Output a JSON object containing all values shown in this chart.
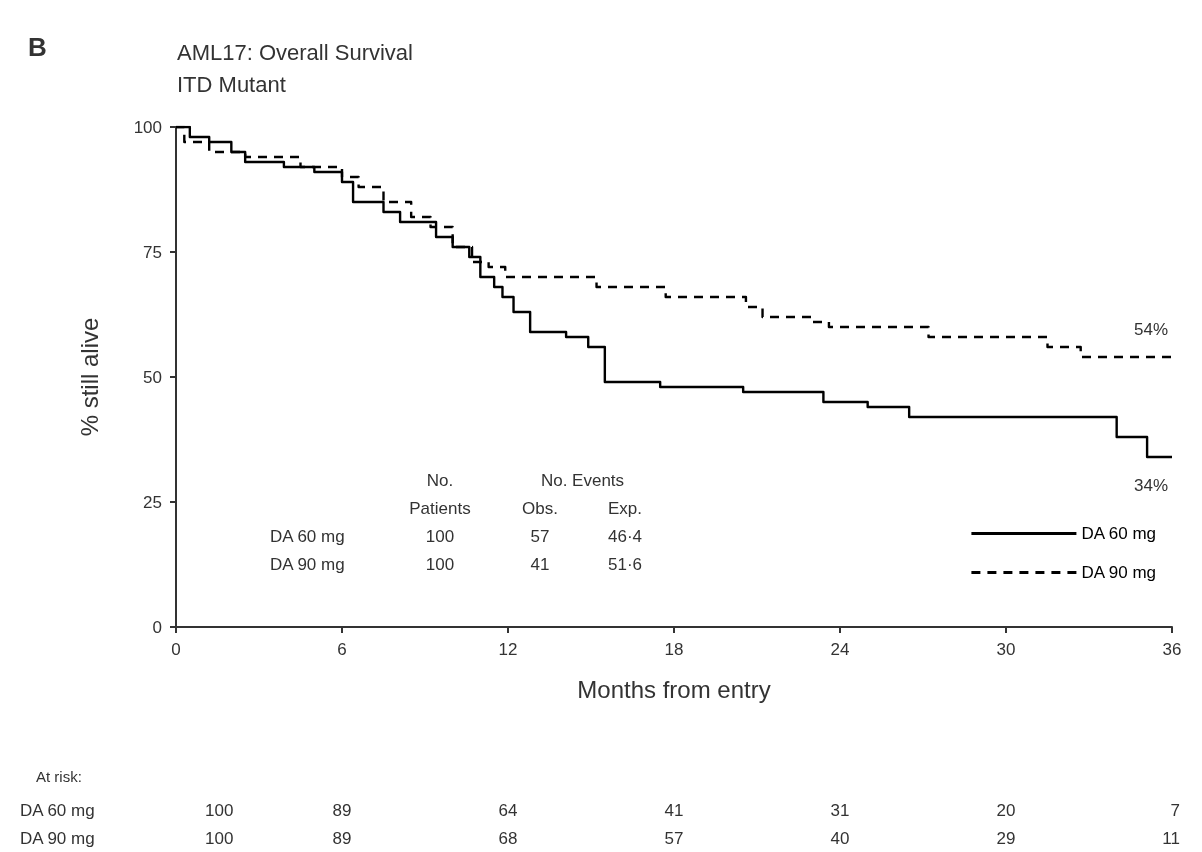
{
  "chart_data": {
    "type": "step",
    "title": "AML17: Overall Survival",
    "subtitle": "ITD Mutant",
    "xlabel": "Months from entry",
    "ylabel": "% still alive",
    "xlim": [
      0,
      36
    ],
    "xticks": [
      0,
      6,
      12,
      18,
      24,
      30,
      36
    ],
    "ylim": [
      0,
      100
    ],
    "yticks": [
      0,
      25,
      50,
      75,
      100
    ],
    "grid": false,
    "legend": "bottom right",
    "marker": "none",
    "series": [
      {
        "name": "DA 60 mg",
        "color": "#000000",
        "line_style": "solid",
        "x": [
          0,
          0.5,
          1.2,
          2,
          2.5,
          3.9,
          5,
          6,
          6.4,
          7.5,
          8.1,
          9.4,
          10,
          10.6,
          11,
          11.5,
          11.8,
          12.2,
          12.8,
          14.1,
          14.9,
          15.5,
          17.5,
          20.5,
          23.4,
          25,
          26.5,
          34,
          35.1,
          36
        ],
        "values": [
          100,
          98,
          97,
          95,
          93,
          92,
          91,
          89,
          85,
          83,
          81,
          78,
          76,
          74,
          70,
          68,
          66,
          63,
          59,
          58,
          56,
          49,
          48,
          47,
          45,
          44,
          42,
          38,
          34,
          34
        ]
      },
      {
        "name": "DA 90 mg",
        "color": "#000000",
        "line_style": "dashed",
        "x": [
          0,
          0.3,
          1.2,
          2.5,
          4.5,
          6,
          6.6,
          7.5,
          8.5,
          9.2,
          10,
          10.7,
          11.3,
          11.9,
          15.2,
          17.7,
          20.6,
          21.2,
          23,
          23.6,
          27.2,
          31.5,
          32.7,
          36
        ],
        "values": [
          100,
          97,
          95,
          94,
          92,
          90,
          88,
          85,
          82,
          80,
          76,
          73,
          72,
          70,
          68,
          66,
          64,
          62,
          61,
          60,
          58,
          56,
          54,
          54
        ]
      }
    ],
    "annotations": [
      "B",
      "\tNo.\tNo. Events",
      "\tPatients\tObs.\tExp.",
      "DA 60 mg\t100\t57\t46·4",
      "DA 90 mg\t100\t41\t51·6",
      "At risk:",
      "DA 60 mg\t100\t89\t64\t41\t31\t20\t7",
      "DA 90 mg\t100\t89\t68\t57\t40\t29\t11",
      {
        "text": "54%",
        "x": 36,
        "y": 54
      },
      {
        "text": "34%",
        "x": 36,
        "y": 34
      }
    ]
  }
}
